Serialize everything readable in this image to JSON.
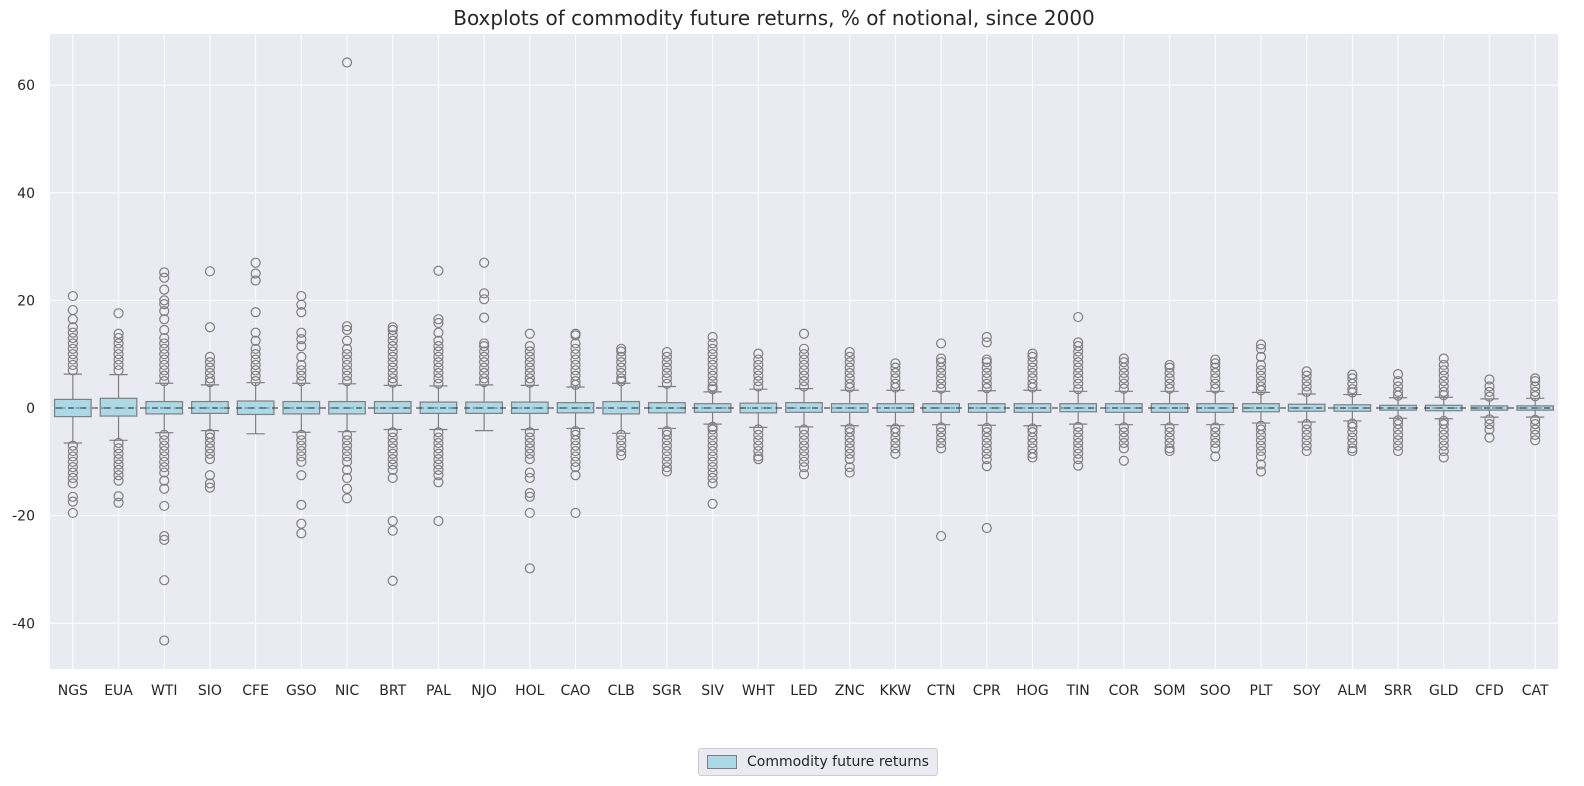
{
  "chart_data": {
    "type": "box",
    "title": "Boxplots of commodity future returns, % of notional, since 2000",
    "xlabel": "",
    "ylabel": "",
    "ylim": [
      -48.5,
      69.5
    ],
    "yticks": [
      -40,
      -20,
      0,
      20,
      40,
      60
    ],
    "grid": true,
    "legend": {
      "position": "bottom-center",
      "entries": [
        "Commodity future returns"
      ]
    },
    "colors": {
      "box_fill": "#add8e6",
      "box_edge": "#7f7f7f",
      "median": "#5b8fa8",
      "mean": "#333333",
      "background": "#eaeaf2",
      "grid": "#ffffff"
    },
    "categories": [
      "NGS",
      "EUA",
      "WTI",
      "SIO",
      "CFE",
      "GSO",
      "NIC",
      "BRT",
      "PAL",
      "NJO",
      "HOL",
      "CAO",
      "CLB",
      "SGR",
      "SIV",
      "WHT",
      "LED",
      "ZNC",
      "KKW",
      "CTN",
      "CPR",
      "HOG",
      "TIN",
      "COR",
      "SOM",
      "SOO",
      "PLT",
      "SOY",
      "ALM",
      "SRR",
      "GLD",
      "CFD",
      "CAT"
    ],
    "series": [
      {
        "name": "Commodity future returns",
        "boxes": [
          {
            "q1": -1.6,
            "median": 0.0,
            "q3": 1.6,
            "whislo": -6.5,
            "whishi": 6.3,
            "high_outliers": [
              7,
              8,
              9,
              10,
              11,
              12,
              13,
              14,
              15,
              16.5,
              18.2,
              20.8
            ],
            "low_outliers": [
              -7,
              -8,
              -9,
              -10,
              -11,
              -12,
              -13,
              -14,
              -16.5,
              -17.4,
              -19.5
            ]
          },
          {
            "q1": -1.5,
            "median": 0.0,
            "q3": 1.8,
            "whislo": -6.0,
            "whishi": 6.2,
            "high_outliers": [
              7,
              8,
              9,
              10,
              11,
              12,
              13,
              13.8,
              17.6
            ],
            "low_outliers": [
              -6.5,
              -7.5,
              -8.5,
              -9.5,
              -10.5,
              -11.5,
              -12.5,
              -13.5,
              -16.4,
              -17.6
            ]
          },
          {
            "q1": -1.1,
            "median": 0.0,
            "q3": 1.2,
            "whislo": -4.6,
            "whishi": 4.6,
            "high_outliers": [
              5,
              6,
              7,
              8,
              9,
              10,
              11,
              12,
              13,
              14.5,
              16.5,
              18,
              19.3,
              20,
              22,
              24.2,
              25.2
            ],
            "low_outliers": [
              -5,
              -6,
              -7,
              -8,
              -9,
              -10,
              -11,
              -12,
              -13.5,
              -15,
              -18.2,
              -23.8,
              -24.5,
              -32,
              -43.2
            ]
          },
          {
            "q1": -1.0,
            "median": 0.0,
            "q3": 1.2,
            "whislo": -4.2,
            "whishi": 4.3,
            "high_outliers": [
              4.8,
              5.5,
              6.5,
              7.5,
              8.5,
              9.5,
              15.0,
              25.4
            ],
            "low_outliers": [
              -4.8,
              -5.5,
              -6.5,
              -7.5,
              -8.5,
              -9.5,
              -12.5,
              -14.0,
              -14.8
            ]
          },
          {
            "q1": -1.2,
            "median": 0.0,
            "q3": 1.3,
            "whislo": -4.8,
            "whishi": 4.7,
            "high_outliers": [
              5,
              6,
              7,
              8,
              9,
              10,
              11,
              12.5,
              14,
              17.8,
              23.7,
              25,
              27
            ]
          },
          {
            "q1": -1.1,
            "median": 0.0,
            "q3": 1.2,
            "whislo": -4.5,
            "whishi": 4.6,
            "high_outliers": [
              5,
              6,
              7,
              8,
              9.5,
              11.5,
              12.8,
              14,
              17.8,
              19.2,
              20.8
            ],
            "low_outliers": [
              -5,
              -6,
              -7,
              -8,
              -9,
              -10,
              -12.5,
              -18,
              -21.5,
              -23.3
            ]
          },
          {
            "q1": -1.1,
            "median": 0.0,
            "q3": 1.2,
            "whislo": -4.4,
            "whishi": 4.5,
            "high_outliers": [
              5,
              6,
              7,
              8,
              9,
              10,
              11,
              12.5,
              14.5,
              15.2,
              64.2
            ],
            "low_outliers": [
              -5,
              -6,
              -7,
              -8,
              -9,
              -10,
              -11.5,
              -13,
              -15,
              -16.8
            ]
          },
          {
            "q1": -1.0,
            "median": 0.0,
            "q3": 1.2,
            "whislo": -4.0,
            "whishi": 4.2,
            "high_outliers": [
              4.7,
              5.5,
              6.5,
              7.5,
              8.5,
              9.5,
              10.5,
              11.5,
              12.5,
              13.5,
              14.5,
              15.0
            ],
            "low_outliers": [
              -4.5,
              -5.5,
              -6.5,
              -7.5,
              -8.5,
              -9.5,
              -10.5,
              -11.5,
              -13,
              -21,
              -22.8,
              -32.1
            ]
          },
          {
            "q1": -1.0,
            "median": 0.0,
            "q3": 1.1,
            "whislo": -4.0,
            "whishi": 4.1,
            "high_outliers": [
              4.5,
              5.5,
              6.5,
              7.5,
              8.5,
              9.5,
              10.5,
              11.5,
              12.5,
              14,
              15.8,
              16.5,
              25.5
            ],
            "low_outliers": [
              -4.5,
              -5.5,
              -6.5,
              -7.5,
              -8.5,
              -9.5,
              -10.5,
              -11.5,
              -12.5,
              -13.8,
              -21
            ]
          },
          {
            "q1": -1.0,
            "median": 0.0,
            "q3": 1.1,
            "whislo": -4.2,
            "whishi": 4.3,
            "high_outliers": [
              4.8,
              5.5,
              6.5,
              7.5,
              8.5,
              9.5,
              10.5,
              11.5,
              12,
              16.8,
              20.2,
              21.3,
              27
            ]
          },
          {
            "q1": -1.0,
            "median": 0.0,
            "q3": 1.1,
            "whislo": -4.0,
            "whishi": 4.2,
            "high_outliers": [
              4.7,
              5.5,
              6.5,
              7.5,
              8.5,
              9.5,
              10.5,
              11.5,
              13.8
            ],
            "low_outliers": [
              -4.5,
              -5.5,
              -6.5,
              -7.5,
              -8.5,
              -9.5,
              -12,
              -13,
              -15.8,
              -16.5,
              -19.5,
              -29.8
            ]
          },
          {
            "q1": -0.9,
            "median": 0.0,
            "q3": 1.0,
            "whislo": -3.8,
            "whishi": 3.9,
            "high_outliers": [
              4.3,
              5,
              6,
              7,
              8,
              9,
              10,
              11,
              12,
              13.5,
              13.8
            ],
            "low_outliers": [
              -4.3,
              -5,
              -6,
              -7,
              -8,
              -9,
              -10,
              -11,
              -12.5,
              -19.5
            ]
          },
          {
            "q1": -1.1,
            "median": 0.0,
            "q3": 1.2,
            "whislo": -4.7,
            "whishi": 4.6,
            "high_outliers": [
              5,
              5.5,
              6.5,
              7.5,
              8.5,
              9.5,
              10.5,
              11
            ],
            "low_outliers": [
              -5,
              -6,
              -7,
              -8,
              -8.8
            ]
          },
          {
            "q1": -0.9,
            "median": 0.0,
            "q3": 1.0,
            "whislo": -3.8,
            "whishi": 4.0,
            "high_outliers": [
              4.5,
              5.5,
              6.5,
              7.5,
              8.5,
              9.5,
              10.4
            ],
            "low_outliers": [
              -4.3,
              -5,
              -6,
              -7,
              -8,
              -9,
              -10,
              -11,
              -11.8
            ]
          },
          {
            "q1": -0.8,
            "median": 0.0,
            "q3": 0.8,
            "whislo": -3.0,
            "whishi": 3.0,
            "high_outliers": [
              3.5,
              4,
              5,
              6,
              7,
              8,
              9,
              10,
              11,
              12,
              13.2
            ],
            "low_outliers": [
              -3.5,
              -4,
              -5,
              -6,
              -7,
              -8,
              -9,
              -10,
              -11,
              -12,
              -13,
              -14,
              -17.8
            ]
          },
          {
            "q1": -0.9,
            "median": 0.0,
            "q3": 0.9,
            "whislo": -3.6,
            "whishi": 3.5,
            "high_outliers": [
              4,
              5,
              6,
              7,
              8,
              9,
              10.1
            ],
            "low_outliers": [
              -4,
              -5,
              -6,
              -7,
              -8,
              -9,
              -9.5
            ]
          },
          {
            "q1": -0.8,
            "median": 0.0,
            "q3": 1.0,
            "whislo": -3.5,
            "whishi": 3.6,
            "high_outliers": [
              4,
              5,
              6,
              7,
              8,
              9,
              10,
              11,
              13.8
            ],
            "low_outliers": [
              -4,
              -5,
              -6,
              -7,
              -8,
              -9,
              -10,
              -11,
              -12.3
            ]
          },
          {
            "q1": -0.8,
            "median": 0.0,
            "q3": 0.8,
            "whislo": -3.3,
            "whishi": 3.3,
            "high_outliers": [
              3.8,
              4.5,
              5.5,
              6.5,
              7.5,
              8.5,
              9.5,
              10.4
            ],
            "low_outliers": [
              -3.8,
              -4.5,
              -5.5,
              -6.5,
              -7.5,
              -8.5,
              -9.5,
              -11,
              -12
            ]
          },
          {
            "q1": -0.8,
            "median": 0.0,
            "q3": 0.8,
            "whislo": -3.3,
            "whishi": 3.3,
            "high_outliers": [
              3.8,
              4.5,
              5.5,
              6.5,
              7.5,
              8.3
            ],
            "low_outliers": [
              -3.8,
              -4.5,
              -5.5,
              -6.5,
              -7.5,
              -8.5
            ]
          },
          {
            "q1": -0.8,
            "median": 0.0,
            "q3": 0.8,
            "whislo": -3.1,
            "whishi": 3.1,
            "high_outliers": [
              3.6,
              4.5,
              5.5,
              6.5,
              7.5,
              8.5,
              9.2,
              12
            ],
            "low_outliers": [
              -3.6,
              -4.5,
              -5.5,
              -6.5,
              -7.5,
              -23.8
            ]
          },
          {
            "q1": -0.8,
            "median": 0.0,
            "q3": 0.8,
            "whislo": -3.2,
            "whishi": 3.2,
            "high_outliers": [
              3.7,
              4.5,
              5.5,
              6.5,
              7.5,
              8.5,
              9,
              12.2,
              13.2
            ],
            "low_outliers": [
              -3.7,
              -4.5,
              -5.5,
              -6.5,
              -7.5,
              -8.5,
              -9.5,
              -10.8,
              -22.3
            ]
          },
          {
            "q1": -0.8,
            "median": 0.0,
            "q3": 0.8,
            "whislo": -3.3,
            "whishi": 3.3,
            "high_outliers": [
              3.8,
              4.5,
              5.5,
              6.5,
              7.5,
              8.5,
              9.5,
              10.1
            ],
            "low_outliers": [
              -3.8,
              -4.5,
              -5.5,
              -6.5,
              -7.5,
              -8.5,
              -9.2
            ]
          },
          {
            "q1": -0.7,
            "median": 0.0,
            "q3": 0.8,
            "whislo": -3.0,
            "whishi": 3.1,
            "high_outliers": [
              3.5,
              4.5,
              5.5,
              6.5,
              7.5,
              8.5,
              9.5,
              10.5,
              11.5,
              12.2,
              16.9
            ],
            "low_outliers": [
              -3.5,
              -4.5,
              -5.5,
              -6.5,
              -7.5,
              -8.5,
              -9.5,
              -10.7
            ]
          },
          {
            "q1": -0.8,
            "median": 0.0,
            "q3": 0.8,
            "whislo": -3.1,
            "whishi": 3.1,
            "high_outliers": [
              3.6,
              4.5,
              5.5,
              6.5,
              7.5,
              8.5,
              9.2
            ],
            "low_outliers": [
              -3.6,
              -4.5,
              -5.5,
              -6.5,
              -7.5,
              -9.8
            ]
          },
          {
            "q1": -0.8,
            "median": 0.0,
            "q3": 0.8,
            "whislo": -3.1,
            "whishi": 3.1,
            "high_outliers": [
              3.6,
              4.5,
              5.5,
              6.5,
              7.5,
              8
            ],
            "low_outliers": [
              -3.6,
              -4.5,
              -5.5,
              -6.5,
              -7.5,
              -8
            ]
          },
          {
            "q1": -0.8,
            "median": 0.0,
            "q3": 0.8,
            "whislo": -3.1,
            "whishi": 3.1,
            "high_outliers": [
              3.6,
              4.5,
              5.5,
              6.5,
              7.5,
              8.3,
              9
            ],
            "low_outliers": [
              -3.6,
              -4.5,
              -5.5,
              -6.5,
              -7.5,
              -9
            ]
          },
          {
            "q1": -0.7,
            "median": 0.0,
            "q3": 0.8,
            "whislo": -2.8,
            "whishi": 2.9,
            "high_outliers": [
              3.3,
              4,
              5,
              6,
              7,
              8,
              9.5,
              11,
              11.8
            ],
            "low_outliers": [
              -3.3,
              -4,
              -5,
              -6,
              -7,
              -8,
              -9,
              -10.5,
              -11.8
            ]
          },
          {
            "q1": -0.6,
            "median": 0.0,
            "q3": 0.7,
            "whislo": -2.6,
            "whishi": 2.6,
            "high_outliers": [
              3,
              4,
              5,
              6,
              6.8
            ],
            "low_outliers": [
              -3,
              -4,
              -5,
              -6,
              -7,
              -8
            ]
          },
          {
            "q1": -0.6,
            "median": 0.0,
            "q3": 0.6,
            "whislo": -2.4,
            "whishi": 2.5,
            "high_outliers": [
              2.9,
              3.5,
              4.5,
              5.5,
              6.2
            ],
            "low_outliers": [
              -2.9,
              -3.5,
              -4.5,
              -5.5,
              -6.5,
              -7.5,
              -8
            ]
          },
          {
            "q1": -0.4,
            "median": 0.0,
            "q3": 0.5,
            "whislo": -1.9,
            "whishi": 1.9,
            "high_outliers": [
              2.3,
              3,
              4,
              5,
              6.3
            ],
            "low_outliers": [
              -2.3,
              -3,
              -4,
              -5,
              -6,
              -7,
              -8
            ]
          },
          {
            "q1": -0.5,
            "median": 0.0,
            "q3": 0.5,
            "whislo": -2.0,
            "whishi": 2.0,
            "high_outliers": [
              2.4,
              3,
              4,
              5,
              6,
              7,
              8,
              9.2
            ],
            "low_outliers": [
              -2.4,
              -3,
              -4,
              -5,
              -6,
              -7,
              -8,
              -9.2
            ]
          },
          {
            "q1": -0.4,
            "median": 0.0,
            "q3": 0.4,
            "whislo": -1.7,
            "whishi": 1.7,
            "high_outliers": [
              2.1,
              3,
              4,
              5.3
            ],
            "low_outliers": [
              -2.1,
              -3,
              -4,
              -5.5
            ]
          },
          {
            "q1": -0.4,
            "median": 0.0,
            "q3": 0.4,
            "whislo": -1.7,
            "whishi": 1.8,
            "high_outliers": [
              2.2,
              3,
              4,
              5,
              5.5
            ],
            "low_outliers": [
              -2.2,
              -3,
              -4,
              -5,
              -6
            ]
          }
        ]
      }
    ]
  }
}
